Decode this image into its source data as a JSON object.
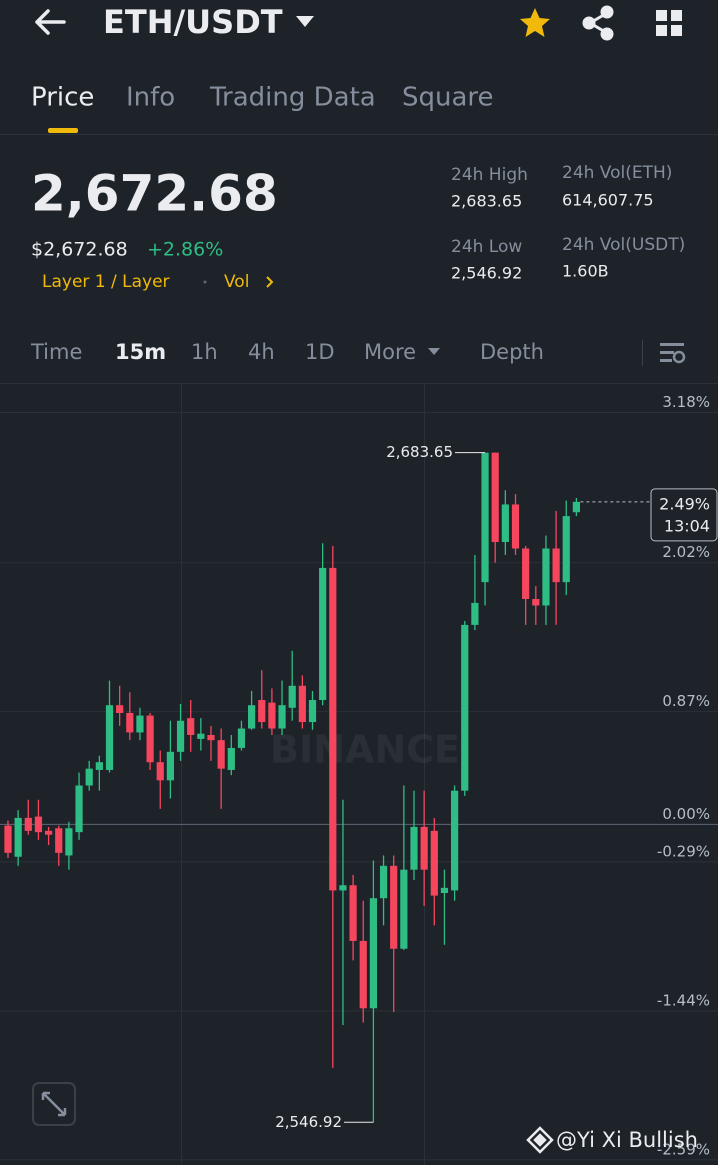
{
  "header": {
    "pair": "ETH/USDT"
  },
  "tabs": [
    "Price",
    "Info",
    "Trading Data",
    "Square"
  ],
  "price": {
    "last": "2,672.68",
    "fiat": "$2,672.68",
    "change": "+2.86%",
    "tag": "Layer 1 / Layer",
    "tag2": "Vol"
  },
  "stats": [
    {
      "label": "24h High",
      "value": "2,683.65"
    },
    {
      "label": "24h Vol(ETH)",
      "value": "614,607.75"
    },
    {
      "label": "24h Low",
      "value": "2,546.92"
    },
    {
      "label": "24h Vol(USDT)",
      "value": "1.60B"
    }
  ],
  "intervals": [
    "Time",
    "15m",
    "1h",
    "4h",
    "1D",
    "More",
    "Depth"
  ],
  "chart_data": {
    "type": "candlestick",
    "watermark": "BINANCE",
    "ylim": [
      -2.63,
      3.4
    ],
    "yticks": [
      {
        "value": 3.18,
        "label": "3.18%"
      },
      {
        "value": 2.02,
        "label": "2.02%"
      },
      {
        "value": 0.87,
        "label": "0.87%"
      },
      {
        "value": 0.0,
        "label": "0.00%"
      },
      {
        "value": -0.29,
        "label": "-0.29%"
      },
      {
        "value": -1.44,
        "label": "-1.44%"
      },
      {
        "value": -2.59,
        "label": "-2.59%"
      }
    ],
    "up_color": "#2ebd85",
    "down_color": "#f6465d",
    "candles": [
      [
        -0.01,
        0.03,
        -0.26,
        -0.22
      ],
      [
        -0.25,
        0.11,
        -0.32,
        0.05
      ],
      [
        0.05,
        0.19,
        -0.08,
        -0.05
      ],
      [
        0.06,
        0.19,
        -0.12,
        -0.06
      ],
      [
        -0.05,
        -0.02,
        -0.16,
        -0.08
      ],
      [
        -0.03,
        -0.01,
        -0.32,
        -0.22
      ],
      [
        -0.24,
        0.02,
        -0.35,
        -0.03
      ],
      [
        -0.06,
        0.4,
        -0.12,
        0.3
      ],
      [
        0.3,
        0.49,
        0.26,
        0.43
      ],
      [
        0.42,
        0.53,
        0.26,
        0.48
      ],
      [
        0.42,
        1.11,
        0.4,
        0.92
      ],
      [
        0.92,
        1.07,
        0.76,
        0.86
      ],
      [
        0.86,
        1.02,
        0.65,
        0.71
      ],
      [
        0.71,
        0.9,
        0.65,
        0.84
      ],
      [
        0.84,
        0.86,
        0.42,
        0.48
      ],
      [
        0.48,
        0.57,
        0.12,
        0.34
      ],
      [
        0.34,
        0.8,
        0.2,
        0.56
      ],
      [
        0.56,
        0.93,
        0.49,
        0.8
      ],
      [
        0.82,
        0.96,
        0.56,
        0.69
      ],
      [
        0.66,
        0.82,
        0.57,
        0.7
      ],
      [
        0.69,
        0.76,
        0.49,
        0.65
      ],
      [
        0.65,
        0.74,
        0.12,
        0.43
      ],
      [
        0.42,
        0.69,
        0.38,
        0.59
      ],
      [
        0.59,
        0.8,
        0.57,
        0.74
      ],
      [
        0.74,
        1.03,
        0.73,
        0.92
      ],
      [
        0.96,
        1.19,
        0.74,
        0.79
      ],
      [
        0.94,
        1.05,
        0.69,
        0.74
      ],
      [
        0.74,
        1.11,
        0.69,
        0.92
      ],
      [
        0.9,
        1.34,
        0.8,
        1.07
      ],
      [
        1.07,
        1.15,
        0.74,
        0.79
      ],
      [
        0.79,
        1.03,
        0.73,
        0.96
      ],
      [
        0.96,
        2.17,
        0.92,
        1.98
      ],
      [
        1.98,
        2.15,
        -1.88,
        -0.51
      ],
      [
        -0.51,
        0.19,
        -1.55,
        -0.47
      ],
      [
        -0.47,
        -0.39,
        -1.05,
        -0.9
      ],
      [
        -0.9,
        -0.59,
        -1.53,
        -1.42
      ],
      [
        -1.42,
        -0.28,
        -2.3,
        -0.57
      ],
      [
        -0.57,
        -0.24,
        -0.78,
        -0.32
      ],
      [
        -0.32,
        -0.24,
        -1.45,
        -0.96
      ],
      [
        -0.96,
        0.3,
        -0.97,
        -0.35
      ],
      [
        -0.35,
        0.26,
        -0.43,
        -0.02
      ],
      [
        -0.02,
        0.26,
        -0.63,
        -0.35
      ],
      [
        -0.05,
        0.05,
        -0.78,
        -0.55
      ],
      [
        -0.53,
        -0.35,
        -0.93,
        -0.49
      ],
      [
        -0.51,
        0.3,
        -0.59,
        0.26
      ],
      [
        0.26,
        1.57,
        0.22,
        1.54
      ],
      [
        1.54,
        2.08,
        1.5,
        1.71
      ],
      [
        1.87,
        2.87,
        1.69,
        2.87
      ],
      [
        2.87,
        2.87,
        2.02,
        2.18
      ],
      [
        2.18,
        2.58,
        2.08,
        2.47
      ],
      [
        2.47,
        2.55,
        2.08,
        2.13
      ],
      [
        2.13,
        2.15,
        1.54,
        1.74
      ],
      [
        1.74,
        1.84,
        1.54,
        1.69
      ],
      [
        1.69,
        2.23,
        1.54,
        2.13
      ],
      [
        2.13,
        2.42,
        1.54,
        1.87
      ],
      [
        1.87,
        2.5,
        1.77,
        2.38
      ],
      [
        2.41,
        2.52,
        2.38,
        2.49
      ]
    ],
    "high_label": "2,683.65",
    "low_label": "2,546.92",
    "last_label": "2.49%",
    "countdown": "13:04"
  },
  "footer": {
    "credit": "@Yi Xi Bullish"
  }
}
